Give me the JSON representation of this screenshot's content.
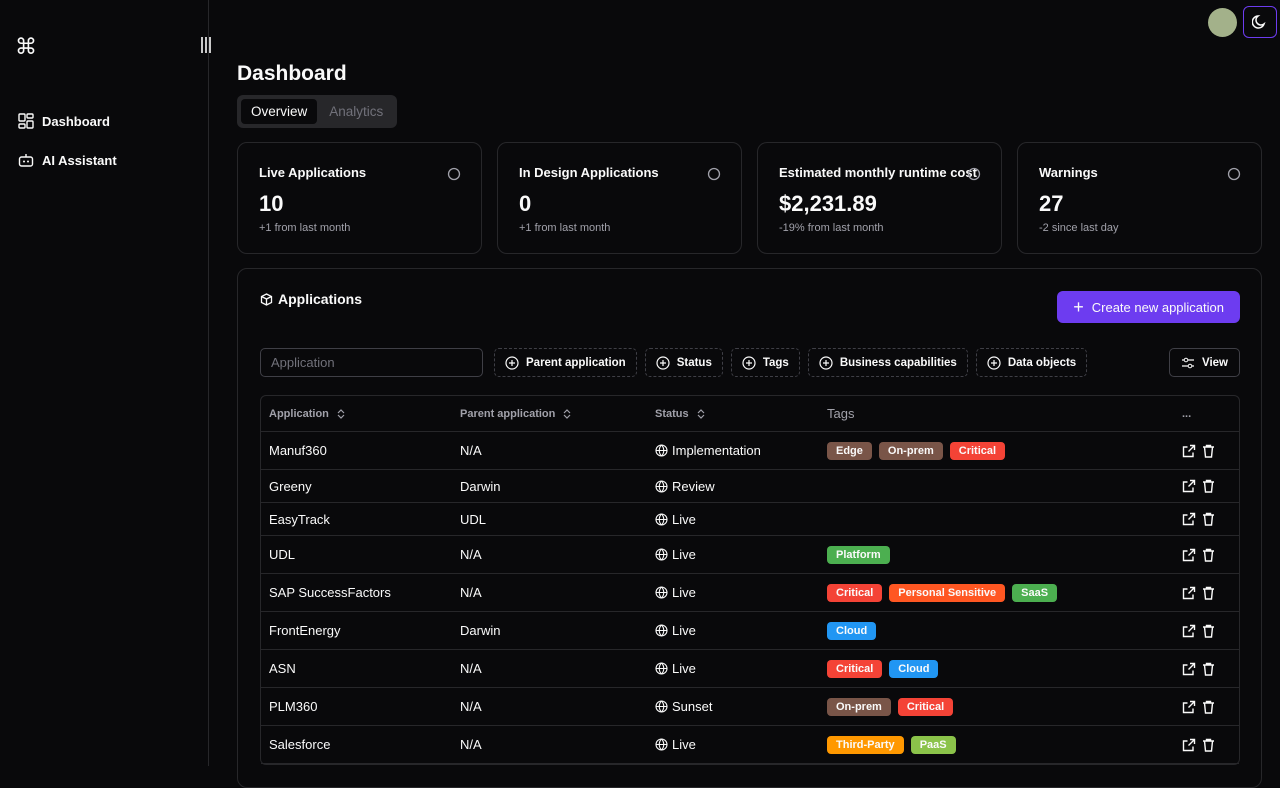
{
  "sidebar": {
    "nav": [
      "Dashboard",
      "AI Assistant"
    ]
  },
  "header": {
    "title": "Dashboard",
    "tabs": [
      "Overview",
      "Analytics"
    ]
  },
  "stats": [
    {
      "label": "Live Applications",
      "value": 10,
      "note": "+1 from last month"
    },
    {
      "label": "In Design Applications",
      "value": 0,
      "note": "+1 from last month"
    },
    {
      "label": "Estimated monthly runtime cost",
      "value": "$2,231.89",
      "note": "-19% from last month"
    },
    {
      "label": "Warnings",
      "value": 27,
      "note": "-2 since last day"
    }
  ],
  "applications": {
    "title": "Applications",
    "create_button": "Create new application",
    "search_placeholder": "Application",
    "filters": [
      "Parent application",
      "Status",
      "Tags",
      "Business capabilities",
      "Data objects"
    ],
    "view_button": "View",
    "columns": [
      "Application",
      "Parent application",
      "Status",
      "Tags",
      "..."
    ],
    "rows": [
      {
        "name": "Manuf360",
        "parent": "N/A",
        "status": "Implementation",
        "tags": [
          {
            "label": "Edge",
            "color": "#795548"
          },
          {
            "label": "On-prem",
            "color": "#795548"
          },
          {
            "label": "Critical",
            "color": "#f44336"
          }
        ]
      },
      {
        "name": "Greeny",
        "parent": "Darwin",
        "status": "Review",
        "tags": []
      },
      {
        "name": "EasyTrack",
        "parent": "UDL",
        "status": "Live",
        "tags": []
      },
      {
        "name": "UDL",
        "parent": "N/A",
        "status": "Live",
        "tags": [
          {
            "label": "Platform",
            "color": "#4caf50"
          }
        ]
      },
      {
        "name": "SAP SuccessFactors",
        "parent": "N/A",
        "status": "Live",
        "tags": [
          {
            "label": "Critical",
            "color": "#f44336"
          },
          {
            "label": "Personal Sensitive",
            "color": "#ff5722"
          },
          {
            "label": "SaaS",
            "color": "#4caf50"
          }
        ]
      },
      {
        "name": "FrontEnergy",
        "parent": "Darwin",
        "status": "Live",
        "tags": [
          {
            "label": "Cloud",
            "color": "#2196f3"
          }
        ]
      },
      {
        "name": "ASN",
        "parent": "N/A",
        "status": "Live",
        "tags": [
          {
            "label": "Critical",
            "color": "#f44336"
          },
          {
            "label": "Cloud",
            "color": "#2196f3"
          }
        ]
      },
      {
        "name": "PLM360",
        "parent": "N/A",
        "status": "Sunset",
        "tags": [
          {
            "label": "On-prem",
            "color": "#795548"
          },
          {
            "label": "Critical",
            "color": "#f44336"
          }
        ]
      },
      {
        "name": "Salesforce",
        "parent": "N/A",
        "status": "Live",
        "tags": [
          {
            "label": "Third-Party",
            "color": "#ff9800"
          },
          {
            "label": "PaaS",
            "color": "#8bc34a"
          }
        ]
      }
    ]
  }
}
